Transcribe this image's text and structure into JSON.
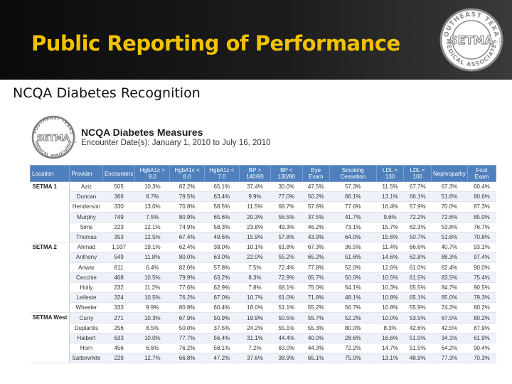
{
  "header": {
    "title": "Public Reporting of Performance",
    "logo": {
      "top_arc": "SOUTHEAST TEXAS",
      "center": "SETMA",
      "bottom_arc": "MEDICAL ASSOCIATES",
      "side": "L.L.P."
    }
  },
  "subtitle": "NCQA Diabetes Recognition",
  "panel": {
    "logo_small": {
      "top_arc": "SOUTHEAST TEXAS",
      "center": "SETMA",
      "bottom_arc": "MEDICAL ASSOCIATES",
      "side": "L.L.P."
    },
    "title": "NCQA Diabetes Measures",
    "subtitle": "Encounter Date(s): January 1, 2010 to July 16, 2010"
  },
  "table": {
    "headers": [
      "Location",
      "Provider",
      "Encounters",
      "HgbA1c > 9.0",
      "HgbA1c < 8.0",
      "HgbA1c < 7.0",
      "BP > 140/90",
      "BP < 130/80",
      "Eye Exam",
      "Smoking Cessation",
      "LDL > 130",
      "LDL < 100",
      "Nephropathy",
      "Foot Exam"
    ],
    "groups": [
      {
        "location": "SETMA 1",
        "rows": [
          [
            "Aziz",
            "505",
            "10.3%",
            "82.2%",
            "65.1%",
            "37.4%",
            "30.0%",
            "47.5%",
            "57.3%",
            "11.5%",
            "67.7%",
            "67.3%",
            "60.4%"
          ],
          [
            "Duncan",
            "366",
            "8.7%",
            "79.5%",
            "63.4%",
            "9.9%",
            "77.0%",
            "50.2%",
            "66.1%",
            "13.1%",
            "66.1%",
            "51.6%",
            "80.6%"
          ],
          [
            "Henderson",
            "330",
            "13.0%",
            "70.8%",
            "58.5%",
            "11.5%",
            "68.7%",
            "57.6%",
            "77.6%",
            "16.4%",
            "57.9%",
            "70.0%",
            "87.3%"
          ],
          [
            "Murphy",
            "749",
            "7.5%",
            "80.9%",
            "65.6%",
            "20.3%",
            "56.5%",
            "37.5%",
            "41.7%",
            "9.6%",
            "72.2%",
            "72.6%",
            "85.0%"
          ],
          [
            "Sims",
            "223",
            "12.1%",
            "74.9%",
            "58.3%",
            "23.8%",
            "49.3%",
            "46.2%",
            "73.1%",
            "15.7%",
            "62.3%",
            "53.8%",
            "76.7%"
          ],
          [
            "Thomas",
            "353",
            "12.5%",
            "67.4%",
            "49.6%",
            "15.9%",
            "57.8%",
            "43.9%",
            "64.0%",
            "15.6%",
            "50.7%",
            "51.6%",
            "70.8%"
          ]
        ]
      },
      {
        "location": "SETMA 2",
        "rows": [
          [
            "Ahmad",
            "1,937",
            "19.1%",
            "62.4%",
            "38.0%",
            "10.1%",
            "61.8%",
            "67.3%",
            "36.5%",
            "11.4%",
            "66.6%",
            "40.7%",
            "93.1%"
          ],
          [
            "Anthony",
            "549",
            "11.8%",
            "80.0%",
            "63.0%",
            "22.0%",
            "55.2%",
            "65.2%",
            "51.6%",
            "14.6%",
            "62.8%",
            "88.3%",
            "97.4%"
          ],
          [
            "Anwar",
            "811",
            "6.4%",
            "82.0%",
            "57.8%",
            "7.5%",
            "72.4%",
            "77.8%",
            "52.0%",
            "12.6%",
            "61.0%",
            "82.4%",
            "90.0%"
          ],
          [
            "Cecchie",
            "468",
            "10.5%",
            "79.9%",
            "63.2%",
            "8.3%",
            "72.9%",
            "65.7%",
            "50.0%",
            "10.5%",
            "61.5%",
            "83.5%",
            "75.4%"
          ],
          [
            "Holly",
            "232",
            "11.2%",
            "77.6%",
            "62.9%",
            "7.8%",
            "68.1%",
            "75.0%",
            "54.1%",
            "10.3%",
            "65.5%",
            "84.7%",
            "90.5%"
          ],
          [
            "Leifeste",
            "324",
            "10.5%",
            "76.2%",
            "67.0%",
            "10.7%",
            "61.0%",
            "71.8%",
            "48.1%",
            "10.8%",
            "65.1%",
            "85.0%",
            "79.3%"
          ],
          [
            "Wheeler",
            "333",
            "9.9%",
            "80.8%",
            "60.4%",
            "18.0%",
            "51.1%",
            "55.2%",
            "56.7%",
            "10.8%",
            "55.9%",
            "74.2%",
            "80.2%"
          ]
        ]
      },
      {
        "location": "SETMA West",
        "rows": [
          [
            "Curry",
            "271",
            "10.3%",
            "67.9%",
            "50.9%",
            "19.9%",
            "50.5%",
            "55.7%",
            "52.2%",
            "10.0%",
            "53.5%",
            "67.5%",
            "80.2%"
          ],
          [
            "Duplantis",
            "256",
            "8.5%",
            "50.0%",
            "37.5%",
            "24.2%",
            "55.1%",
            "55.3%",
            "80.0%",
            "8.3%",
            "42.6%",
            "42.5%",
            "87.9%"
          ],
          [
            "Halbert",
            "633",
            "10.0%",
            "77.7%",
            "56.4%",
            "31.1%",
            "44.4%",
            "40.0%",
            "28.6%",
            "16.6%",
            "51.0%",
            "34.1%",
            "61.9%"
          ],
          [
            "Horn",
            "456",
            "6.6%",
            "76.2%",
            "58.1%",
            "7.2%",
            "63.0%",
            "44.3%",
            "72.2%",
            "14.7%",
            "51.5%",
            "64.2%",
            "90.4%"
          ],
          [
            "Satterwhite",
            "229",
            "12.7%",
            "66.8%",
            "47.2%",
            "37.6%",
            "38.9%",
            "65.1%",
            "75.0%",
            "13.1%",
            "48.9%",
            "77.3%",
            "70.3%"
          ]
        ]
      }
    ]
  },
  "colors": {
    "title": "#f2c200",
    "header_bg": "#111111",
    "table_header": "#4f80bd",
    "logo": "#8a8a8a",
    "logo_small": "#7d7d7d"
  }
}
